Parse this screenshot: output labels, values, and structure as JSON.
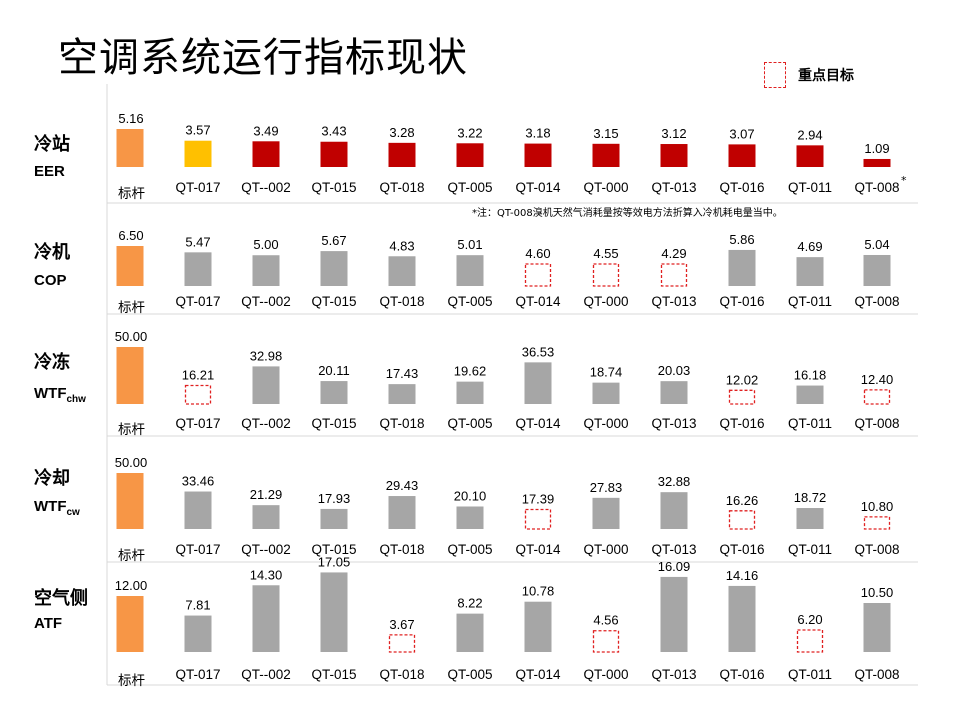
{
  "title": "空调系统运行指标现状",
  "legend": {
    "label": "重点目标",
    "swatch_color": "#e02020"
  },
  "colors": {
    "benchmark": "#f79646",
    "gray": "#a6a6a6",
    "red": "#c00000",
    "yellow": "#ffc000",
    "dashed": "#e02020"
  },
  "chart_data": [
    {
      "type": "bar",
      "name": "冷站",
      "sub": "EER",
      "categories": [
        "标杆",
        "QT-017",
        "QT--002",
        "QT-015",
        "QT-018",
        "QT-005",
        "QT-014",
        "QT-000",
        "QT-013",
        "QT-016",
        "QT-011",
        "QT-008"
      ],
      "values": [
        5.16,
        3.57,
        3.49,
        3.43,
        3.28,
        3.22,
        3.18,
        3.15,
        3.12,
        3.07,
        2.94,
        1.09
      ],
      "labels": [
        "5.16",
        "3.57",
        "3.49",
        "3.43",
        "3.28",
        "3.22",
        "3.18",
        "3.15",
        "3.12",
        "3.07",
        "2.94",
        "1.09"
      ],
      "styles": [
        "benchmark",
        "yellow",
        "red",
        "red",
        "red",
        "red",
        "red",
        "red",
        "red",
        "red",
        "red",
        "red"
      ],
      "last_cat_mark": "*",
      "footnote": "*注：QT-008溴机天然气消耗量按等效电方法折算入冷机耗电量当中。"
    },
    {
      "type": "bar",
      "name": "冷机",
      "sub": "COP",
      "categories": [
        "标杆",
        "QT-017",
        "QT--002",
        "QT-015",
        "QT-018",
        "QT-005",
        "QT-014",
        "QT-000",
        "QT-013",
        "QT-016",
        "QT-011",
        "QT-008"
      ],
      "values": [
        6.5,
        5.47,
        5.0,
        5.67,
        4.83,
        5.01,
        4.6,
        4.55,
        4.29,
        5.86,
        4.69,
        5.04
      ],
      "labels": [
        "6.50",
        "5.47",
        "5.00",
        "5.67",
        "4.83",
        "5.01",
        "4.60",
        "4.55",
        "4.29",
        "5.86",
        "4.69",
        "5.04"
      ],
      "styles": [
        "benchmark",
        "gray",
        "gray",
        "gray",
        "gray",
        "gray",
        "dashed",
        "dashed",
        "dashed",
        "gray",
        "gray",
        "gray"
      ]
    },
    {
      "type": "bar",
      "name": "冷冻",
      "sub": "WTF",
      "sub_suffix": "chw",
      "categories": [
        "标杆",
        "QT-017",
        "QT--002",
        "QT-015",
        "QT-018",
        "QT-005",
        "QT-014",
        "QT-000",
        "QT-013",
        "QT-016",
        "QT-011",
        "QT-008"
      ],
      "values": [
        50.0,
        16.21,
        32.98,
        20.11,
        17.43,
        19.62,
        36.53,
        18.74,
        20.03,
        12.02,
        16.18,
        12.4
      ],
      "labels": [
        "50.00",
        "16.21",
        "32.98",
        "20.11",
        "17.43",
        "19.62",
        "36.53",
        "18.74",
        "20.03",
        "12.02",
        "16.18",
        "12.40"
      ],
      "styles": [
        "benchmark",
        "dashed",
        "gray",
        "gray",
        "gray",
        "gray",
        "gray",
        "gray",
        "gray",
        "dashed",
        "gray",
        "dashed"
      ]
    },
    {
      "type": "bar",
      "name": "冷却",
      "sub": "WTF",
      "sub_suffix": "cw",
      "categories": [
        "标杆",
        "QT-017",
        "QT--002",
        "QT-015",
        "QT-018",
        "QT-005",
        "QT-014",
        "QT-000",
        "QT-013",
        "QT-016",
        "QT-011",
        "QT-008"
      ],
      "values": [
        50.0,
        33.46,
        21.29,
        17.93,
        29.43,
        20.1,
        17.39,
        27.83,
        32.88,
        16.26,
        18.72,
        10.8
      ],
      "labels": [
        "50.00",
        "33.46",
        "21.29",
        "17.93",
        "29.43",
        "20.10",
        "17.39",
        "27.83",
        "32.88",
        "16.26",
        "18.72",
        "10.80"
      ],
      "styles": [
        "benchmark",
        "gray",
        "gray",
        "gray",
        "gray",
        "gray",
        "dashed",
        "gray",
        "gray",
        "dashed",
        "gray",
        "dashed"
      ]
    },
    {
      "type": "bar",
      "name": "空气侧",
      "sub": "ATF",
      "categories": [
        "标杆",
        "QT-017",
        "QT--002",
        "QT-015",
        "QT-018",
        "QT-005",
        "QT-014",
        "QT-000",
        "QT-013",
        "QT-016",
        "QT-011",
        "QT-008"
      ],
      "values": [
        12.0,
        7.81,
        14.3,
        17.05,
        3.67,
        8.22,
        10.78,
        4.56,
        16.09,
        14.16,
        6.2,
        10.5
      ],
      "labels": [
        "12.00",
        "7.81",
        "14.30",
        "17.05",
        "3.67",
        "8.22",
        "10.78",
        "4.56",
        "16.09",
        "14.16",
        "6.20",
        "10.50"
      ],
      "styles": [
        "benchmark",
        "gray",
        "gray",
        "gray",
        "dashed",
        "gray",
        "gray",
        "dashed",
        "gray",
        "gray",
        "dashed",
        "gray"
      ]
    }
  ]
}
